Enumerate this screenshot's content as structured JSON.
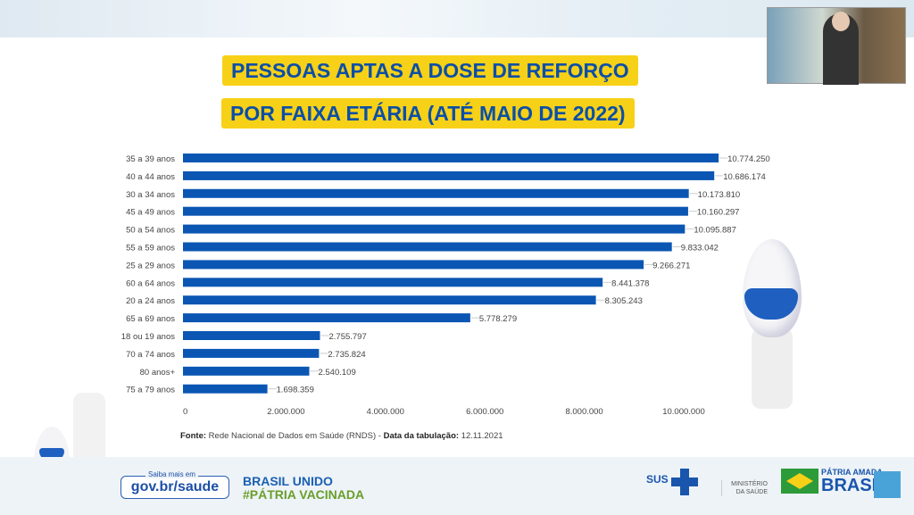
{
  "title_line1": "PESSOAS APTAS A DOSE DE REFORÇO",
  "title_line2": "POR FAIXA ETÁRIA (ATÉ MAIO DE 2022)",
  "source": {
    "label": "Fonte:",
    "text": " Rede Nacional de Dados em Saúde (RNDS) - ",
    "date_label": "Data da tabulação:",
    "date": " 12.11.2021"
  },
  "footer": {
    "saiba_mais": "Saiba mais em",
    "gov_link": "gov.br/saude",
    "brasil_unido": "BRASIL UNIDO",
    "patria_vacinada": "#PÁTRIA VACINADA",
    "sus": "SUS",
    "ministerio": "MINISTÉRIO DA SAÚDE",
    "patria_amada": "PÁTRIA AMADA",
    "brasil": "BRASIL"
  },
  "chart_data": {
    "type": "bar",
    "orientation": "horizontal",
    "title": "PESSOAS APTAS A DOSE DE REFORÇO POR FAIXA ETÁRIA (ATÉ MAIO DE 2022)",
    "categories": [
      "35 a 39 anos",
      "40 a 44 anos",
      "30 a 34 anos",
      "45 a 49 anos",
      "50 a 54 anos",
      "55 a 59 anos",
      "25 a 29 anos",
      "60 a 64 anos",
      "20 a 24 anos",
      "65 a 69 anos",
      "18 ou 19 anos",
      "70 a 74 anos",
      "80 anos+",
      "75 a 79 anos"
    ],
    "values": [
      10774250,
      10686174,
      10173810,
      10160297,
      10095887,
      9833042,
      9266271,
      8441378,
      8305243,
      5778279,
      2755797,
      2735824,
      2540109,
      1698359
    ],
    "value_labels": [
      "10.774.250",
      "10.686.174",
      "10.173.810",
      "10.160.297",
      "10.095.887",
      "9.833.042",
      "9.266.271",
      "8.441.378",
      "8.305.243",
      "5.778.279",
      "2.755.797",
      "2.735.824",
      "2.540.109",
      "1.698.359"
    ],
    "xticks": [
      0,
      2000000,
      4000000,
      6000000,
      8000000,
      10000000
    ],
    "xtick_labels": [
      "0",
      "2.000.000",
      "4.000.000",
      "6.000.000",
      "8.000.000",
      "10.000.000"
    ],
    "xlim": [
      0,
      11000000
    ],
    "bar_color": "#0b56b3",
    "grid": false
  }
}
